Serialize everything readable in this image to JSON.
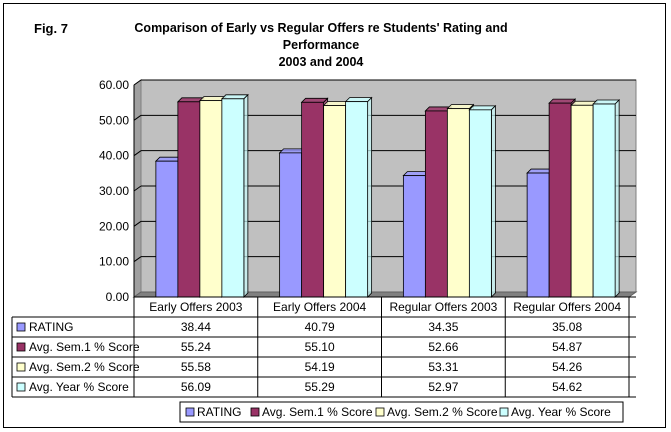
{
  "figure_label": "Fig. 7",
  "title_line1": "Comparison of Early vs Regular Offers  re Students' Rating and Performance",
  "title_line2": "2003 and 2004",
  "chart_data": {
    "type": "bar",
    "title": "Comparison of Early vs Regular Offers  re Students' Rating and Performance 2003 and 2004",
    "categories": [
      "Early Offers 2003",
      "Early Offers 2004",
      "Regular Offers 2003",
      "Regular Offers 2004"
    ],
    "series": [
      {
        "name": "RATING",
        "color": "#9999ff",
        "values": [
          38.44,
          40.79,
          34.35,
          35.08
        ],
        "labels": [
          "38.44",
          "40.79",
          "34.35",
          "35.08"
        ]
      },
      {
        "name": "Avg. Sem.1 % Score",
        "color": "#993366",
        "values": [
          55.24,
          55.1,
          52.66,
          54.87
        ],
        "labels": [
          "55.24",
          "55.10",
          "52.66",
          "54.87"
        ]
      },
      {
        "name": "Avg. Sem.2 % Score",
        "color": "#ffffcc",
        "values": [
          55.58,
          54.19,
          53.31,
          54.26
        ],
        "labels": [
          "55.58",
          "54.19",
          "53.31",
          "54.26"
        ]
      },
      {
        "name": "Avg. Year % Score",
        "color": "#ccffff",
        "values": [
          56.09,
          55.29,
          52.97,
          54.62
        ],
        "labels": [
          "56.09",
          "55.29",
          "52.97",
          "54.62"
        ]
      }
    ],
    "ylim": [
      0,
      60
    ],
    "yticks": [
      "0.00",
      "10.00",
      "20.00",
      "30.00",
      "40.00",
      "50.00",
      "60.00"
    ],
    "grid": true,
    "legend_position": "bottom",
    "data_table": true,
    "plot_background": "#c0c0c0"
  }
}
